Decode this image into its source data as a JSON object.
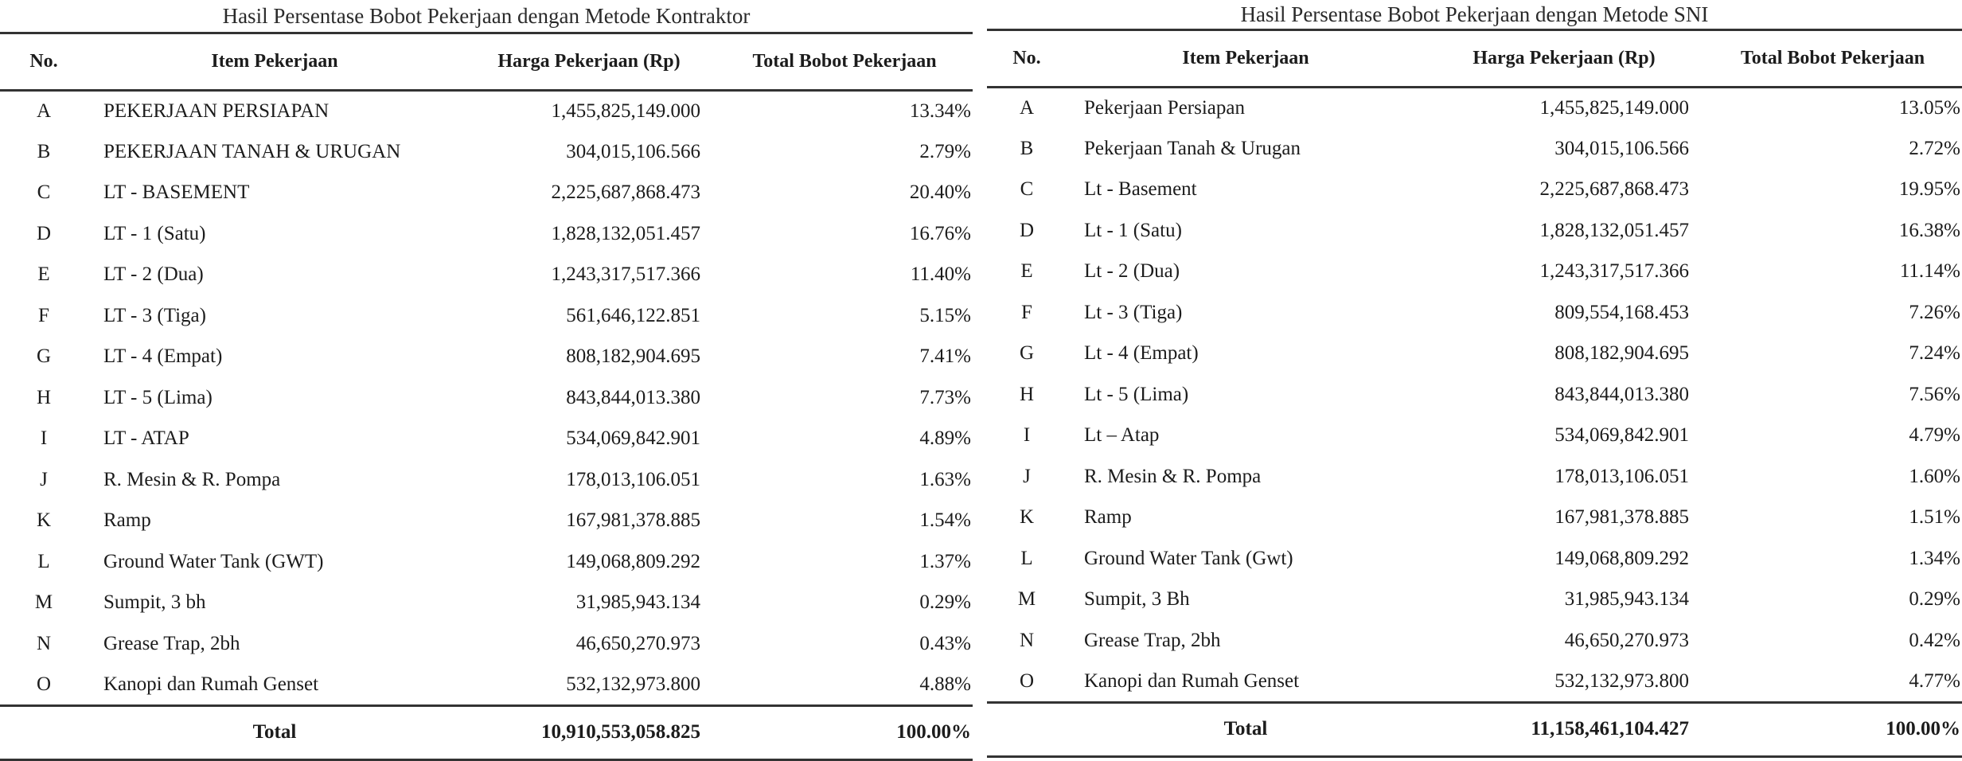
{
  "left": {
    "title": "Hasil Persentase Bobot Pekerjaan dengan Metode Kontraktor",
    "headers": {
      "no": "No.",
      "item": "Item Pekerjaan",
      "harga": "Harga Pekerjaan (Rp)",
      "bobot": "Total Bobot Pekerjaan"
    },
    "rows": [
      {
        "no": "A",
        "item": "PEKERJAAN PERSIAPAN",
        "harga": "1,455,825,149.000",
        "bobot": "13.34%"
      },
      {
        "no": "B",
        "item": "PEKERJAAN TANAH & URUGAN",
        "harga": "304,015,106.566",
        "bobot": "2.79%"
      },
      {
        "no": "C",
        "item": "LT - BASEMENT",
        "harga": "2,225,687,868.473",
        "bobot": "20.40%"
      },
      {
        "no": "D",
        "item": "LT - 1 (Satu)",
        "harga": "1,828,132,051.457",
        "bobot": "16.76%"
      },
      {
        "no": "E",
        "item": "LT - 2 (Dua)",
        "harga": "1,243,317,517.366",
        "bobot": "11.40%"
      },
      {
        "no": "F",
        "item": "LT - 3 (Tiga)",
        "harga": "561,646,122.851",
        "bobot": "5.15%"
      },
      {
        "no": "G",
        "item": "LT - 4 (Empat)",
        "harga": "808,182,904.695",
        "bobot": "7.41%"
      },
      {
        "no": "H",
        "item": "LT - 5 (Lima)",
        "harga": "843,844,013.380",
        "bobot": "7.73%"
      },
      {
        "no": "I",
        "item": "LT - ATAP",
        "harga": "534,069,842.901",
        "bobot": "4.89%"
      },
      {
        "no": "J",
        "item": "R. Mesin & R. Pompa",
        "harga": "178,013,106.051",
        "bobot": "1.63%"
      },
      {
        "no": "K",
        "item": "Ramp",
        "harga": "167,981,378.885",
        "bobot": "1.54%"
      },
      {
        "no": "L",
        "item": "Ground Water Tank (GWT)",
        "harga": "149,068,809.292",
        "bobot": "1.37%"
      },
      {
        "no": "M",
        "item": "Sumpit,  3 bh",
        "harga": "31,985,943.134",
        "bobot": "0.29%"
      },
      {
        "no": "N",
        "item": "Grease Trap, 2bh",
        "harga": "46,650,270.973",
        "bobot": "0.43%"
      },
      {
        "no": "O",
        "item": "Kanopi  dan Rumah Genset",
        "harga": "532,132,973.800",
        "bobot": "4.88%"
      }
    ],
    "total": {
      "label": "Total",
      "harga": "10,910,553,058.825",
      "bobot": "100.00%"
    }
  },
  "right": {
    "title": "Hasil Persentase Bobot Pekerjaan dengan Metode SNI",
    "headers": {
      "no": "No.",
      "item": "Item Pekerjaan",
      "harga": "Harga Pekerjaan (Rp)",
      "bobot": "Total Bobot Pekerjaan"
    },
    "rows": [
      {
        "no": "A",
        "item": "Pekerjaan Persiapan",
        "harga": "1,455,825,149.000",
        "bobot": "13.05%"
      },
      {
        "no": "B",
        "item": "Pekerjaan Tanah & Urugan",
        "harga": "304,015,106.566",
        "bobot": "2.72%"
      },
      {
        "no": "C",
        "item": "Lt - Basement",
        "harga": "2,225,687,868.473",
        "bobot": "19.95%"
      },
      {
        "no": "D",
        "item": "Lt - 1 (Satu)",
        "harga": "1,828,132,051.457",
        "bobot": "16.38%"
      },
      {
        "no": "E",
        "item": "Lt - 2 (Dua)",
        "harga": "1,243,317,517.366",
        "bobot": "11.14%"
      },
      {
        "no": "F",
        "item": "Lt - 3 (Tiga)",
        "harga": "809,554,168.453",
        "bobot": "7.26%"
      },
      {
        "no": "G",
        "item": "Lt - 4 (Empat)",
        "harga": "808,182,904.695",
        "bobot": "7.24%"
      },
      {
        "no": "H",
        "item": "Lt - 5 (Lima)",
        "harga": "843,844,013.380",
        "bobot": "7.56%"
      },
      {
        "no": "I",
        "item": "Lt – Atap",
        "harga": "534,069,842.901",
        "bobot": "4.79%"
      },
      {
        "no": "J",
        "item": "R. Mesin & R. Pompa",
        "harga": "178,013,106.051",
        "bobot": "1.60%"
      },
      {
        "no": "K",
        "item": "Ramp",
        "harga": "167,981,378.885",
        "bobot": "1.51%"
      },
      {
        "no": "L",
        "item": "Ground Water Tank (Gwt)",
        "harga": "149,068,809.292",
        "bobot": "1.34%"
      },
      {
        "no": "M",
        "item": "Sumpit,  3 Bh",
        "harga": "31,985,943.134",
        "bobot": "0.29%"
      },
      {
        "no": "N",
        "item": "Grease Trap, 2bh",
        "harga": "46,650,270.973",
        "bobot": "0.42%"
      },
      {
        "no": "O",
        "item": "Kanopi  dan Rumah Genset",
        "harga": "532,132,973.800",
        "bobot": "4.77%"
      }
    ],
    "total": {
      "label": "Total",
      "harga": "11,158,461,104.427",
      "bobot": "100.00%"
    }
  }
}
